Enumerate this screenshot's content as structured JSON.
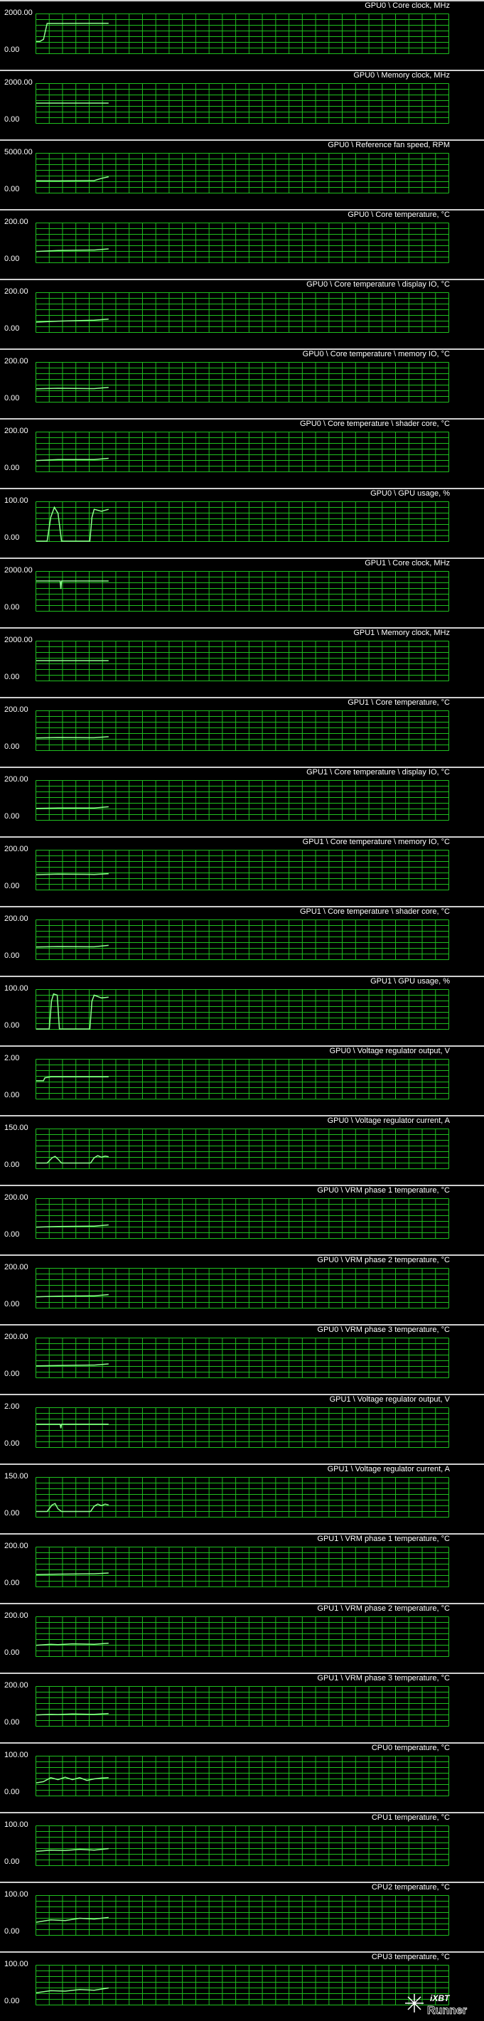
{
  "colors": {
    "background": "#000000",
    "grid": "#1fbf1f",
    "trace": "#8dff8d",
    "separator": "#cfcfcf",
    "label": "#ffffff"
  },
  "logo": {
    "text": "iXBT Runner"
  },
  "panels": [
    {
      "title": "GPU0 \\ Core clock, MHz",
      "ymax": "2000.00",
      "ymin": "0.00",
      "chart_data": {
        "type": "line",
        "ylim": [
          0,
          2000
        ],
        "x": [
          0,
          0.5,
          1,
          1.5,
          2,
          3,
          10
        ],
        "y": [
          600,
          600,
          700,
          1500,
          1500,
          1500,
          1510
        ]
      }
    },
    {
      "title": "GPU0 \\ Memory clock, MHz",
      "ymax": "2000.00",
      "ymin": "0.00",
      "chart_data": {
        "type": "line",
        "ylim": [
          0,
          2000
        ],
        "x": [
          0,
          10
        ],
        "y": [
          1000,
          1000
        ]
      }
    },
    {
      "title": "GPU0 \\ Reference fan speed, RPM",
      "ymax": "5000.00",
      "ymin": "0.00",
      "chart_data": {
        "type": "line",
        "ylim": [
          0,
          5000
        ],
        "x": [
          0,
          3,
          8,
          9,
          10
        ],
        "y": [
          1500,
          1480,
          1520,
          1800,
          2000
        ]
      }
    },
    {
      "title": "GPU0 \\ Core temperature, °C",
      "ymax": "200.00",
      "ymin": "0.00",
      "chart_data": {
        "type": "line",
        "ylim": [
          0,
          200
        ],
        "x": [
          0,
          3,
          8,
          10
        ],
        "y": [
          55,
          60,
          62,
          68
        ]
      }
    },
    {
      "title": "GPU0 \\ Core temperature \\ display IO, °C",
      "ymax": "200.00",
      "ymin": "0.00",
      "chart_data": {
        "type": "line",
        "ylim": [
          0,
          200
        ],
        "x": [
          0,
          3,
          8,
          10
        ],
        "y": [
          50,
          55,
          60,
          65
        ]
      }
    },
    {
      "title": "GPU0 \\ Core temperature \\ memory IO, °C",
      "ymax": "200.00",
      "ymin": "0.00",
      "chart_data": {
        "type": "line",
        "ylim": [
          0,
          200
        ],
        "x": [
          0,
          3,
          8,
          10
        ],
        "y": [
          65,
          68,
          66,
          72
        ]
      }
    },
    {
      "title": "GPU0 \\ Core temperature \\ shader core, °C",
      "ymax": "200.00",
      "ymin": "0.00",
      "chart_data": {
        "type": "line",
        "ylim": [
          0,
          200
        ],
        "x": [
          0,
          3,
          8,
          10
        ],
        "y": [
          55,
          60,
          60,
          66
        ]
      }
    },
    {
      "title": "GPU0 \\ GPU usage, %",
      "ymax": "100.00",
      "ymin": "0.00",
      "chart_data": {
        "type": "line",
        "ylim": [
          0,
          100
        ],
        "x": [
          0,
          1.5,
          2,
          2.5,
          3,
          3.5,
          7.4,
          7.7,
          8,
          9,
          10
        ],
        "y": [
          0,
          0,
          60,
          85,
          70,
          0,
          0,
          60,
          80,
          75,
          80
        ]
      }
    },
    {
      "title": "GPU1 \\ Core clock, MHz",
      "ymax": "2000.00",
      "ymin": "0.00",
      "chart_data": {
        "type": "line",
        "ylim": [
          0,
          2000
        ],
        "x": [
          0,
          3.3,
          3.4,
          3.5,
          10
        ],
        "y": [
          1500,
          1500,
          1100,
          1500,
          1500
        ]
      }
    },
    {
      "title": "GPU1 \\ Memory clock, MHz",
      "ymax": "2000.00",
      "ymin": "0.00",
      "chart_data": {
        "type": "line",
        "ylim": [
          0,
          2000
        ],
        "x": [
          0,
          10
        ],
        "y": [
          1000,
          1000
        ]
      }
    },
    {
      "title": "GPU1 \\ Core temperature, °C",
      "ymax": "200.00",
      "ymin": "0.00",
      "chart_data": {
        "type": "line",
        "ylim": [
          0,
          200
        ],
        "x": [
          0,
          3,
          8,
          10
        ],
        "y": [
          62,
          64,
          63,
          68
        ]
      }
    },
    {
      "title": "GPU1 \\ Core temperature \\ display IO, °C",
      "ymax": "200.00",
      "ymin": "0.00",
      "chart_data": {
        "type": "line",
        "ylim": [
          0,
          200
        ],
        "x": [
          0,
          3,
          8,
          10
        ],
        "y": [
          58,
          60,
          60,
          66
        ]
      }
    },
    {
      "title": "GPU1 \\ Core temperature \\ memory IO, °C",
      "ymax": "200.00",
      "ymin": "0.00",
      "chart_data": {
        "type": "line",
        "ylim": [
          0,
          200
        ],
        "x": [
          0,
          3,
          8,
          10
        ],
        "y": [
          75,
          78,
          76,
          80
        ]
      }
    },
    {
      "title": "GPU1 \\ Core temperature \\ shader core, °C",
      "ymax": "200.00",
      "ymin": "0.00",
      "chart_data": {
        "type": "line",
        "ylim": [
          0,
          200
        ],
        "x": [
          0,
          3,
          8,
          10
        ],
        "y": [
          62,
          64,
          63,
          70
        ]
      }
    },
    {
      "title": "GPU1 \\ GPU usage, %",
      "ymax": "100.00",
      "ymin": "0.00",
      "chart_data": {
        "type": "line",
        "ylim": [
          0,
          100
        ],
        "x": [
          0,
          1.8,
          2.1,
          2.4,
          2.9,
          3.2,
          7.4,
          7.7,
          8,
          9,
          10
        ],
        "y": [
          0,
          0,
          70,
          88,
          85,
          0,
          0,
          70,
          85,
          78,
          80
        ]
      }
    },
    {
      "title": "GPU0 \\ Voltage regulator output, V",
      "ymax": "2.00",
      "ymin": "0.00",
      "chart_data": {
        "type": "line",
        "ylim": [
          0,
          2
        ],
        "x": [
          0,
          1,
          1.2,
          2,
          10
        ],
        "y": [
          0.9,
          0.9,
          1.05,
          1.1,
          1.1
        ]
      }
    },
    {
      "title": "GPU0 \\ Voltage regulator current, A",
      "ymax": "150.00",
      "ymin": "0.00",
      "chart_data": {
        "type": "line",
        "ylim": [
          0,
          150
        ],
        "x": [
          0,
          1.5,
          2.2,
          2.6,
          3,
          3.5,
          4,
          7.5,
          8,
          8.5,
          9,
          9.5,
          10
        ],
        "y": [
          20,
          20,
          40,
          45,
          35,
          20,
          20,
          20,
          40,
          48,
          42,
          46,
          44
        ]
      }
    },
    {
      "title": "GPU0 \\ VRM phase 1 temperature, °C",
      "ymax": "200.00",
      "ymin": "0.00",
      "chart_data": {
        "type": "line",
        "ylim": [
          0,
          200
        ],
        "x": [
          0,
          3,
          8,
          10
        ],
        "y": [
          55,
          58,
          60,
          66
        ]
      }
    },
    {
      "title": "GPU0 \\ VRM phase 2 temperature, °C",
      "ymax": "200.00",
      "ymin": "0.00",
      "chart_data": {
        "type": "line",
        "ylim": [
          0,
          200
        ],
        "x": [
          0,
          3,
          8,
          10
        ],
        "y": [
          55,
          58,
          60,
          66
        ]
      }
    },
    {
      "title": "GPU0 \\ VRM phase 3 temperature, °C",
      "ymax": "200.00",
      "ymin": "0.00",
      "chart_data": {
        "type": "line",
        "ylim": [
          0,
          200
        ],
        "x": [
          0,
          3,
          8,
          10
        ],
        "y": [
          58,
          60,
          62,
          68
        ]
      }
    },
    {
      "title": "GPU1 \\ Voltage regulator output, V",
      "ymax": "2.00",
      "ymin": "0.00",
      "chart_data": {
        "type": "line",
        "ylim": [
          0,
          2
        ],
        "x": [
          0,
          3.3,
          3.4,
          3.5,
          10
        ],
        "y": [
          1.15,
          1.15,
          0.95,
          1.15,
          1.15
        ]
      }
    },
    {
      "title": "GPU1 \\ Voltage regulator current, A",
      "ymax": "150.00",
      "ymin": "0.00",
      "chart_data": {
        "type": "line",
        "ylim": [
          0,
          150
        ],
        "x": [
          0,
          1.5,
          2.2,
          2.6,
          3,
          3.5,
          7.5,
          8,
          8.5,
          9,
          9.5,
          10
        ],
        "y": [
          20,
          20,
          45,
          50,
          30,
          20,
          20,
          40,
          48,
          42,
          48,
          45
        ]
      }
    },
    {
      "title": "GPU1 \\ VRM phase 1 temperature, °C",
      "ymax": "200.00",
      "ymin": "0.00",
      "chart_data": {
        "type": "line",
        "ylim": [
          0,
          200
        ],
        "x": [
          0,
          3,
          8,
          10
        ],
        "y": [
          60,
          62,
          64,
          68
        ]
      }
    },
    {
      "title": "GPU1 \\ VRM phase 2 temperature, °C",
      "ymax": "200.00",
      "ymin": "0.00",
      "chart_data": {
        "type": "line",
        "ylim": [
          0,
          200
        ],
        "x": [
          0,
          2,
          3,
          5,
          8,
          10
        ],
        "y": [
          55,
          60,
          58,
          62,
          60,
          65
        ]
      }
    },
    {
      "title": "GPU1 \\ VRM phase 3 temperature, °C",
      "ymax": "200.00",
      "ymin": "0.00",
      "chart_data": {
        "type": "line",
        "ylim": [
          0,
          200
        ],
        "x": [
          0,
          2,
          3,
          5,
          8,
          10
        ],
        "y": [
          55,
          58,
          57,
          60,
          58,
          62
        ]
      }
    },
    {
      "title": "CPU0 temperature, °C",
      "ymax": "100.00",
      "ymin": "0.00",
      "chart_data": {
        "type": "line",
        "ylim": [
          0,
          100
        ],
        "x": [
          0,
          1,
          2,
          3,
          4,
          5,
          6,
          7,
          8,
          9,
          10
        ],
        "y": [
          32,
          35,
          45,
          40,
          46,
          40,
          45,
          38,
          42,
          44,
          45
        ]
      }
    },
    {
      "title": "CPU1 temperature, °C",
      "ymax": "100.00",
      "ymin": "0.00",
      "chart_data": {
        "type": "line",
        "ylim": [
          0,
          100
        ],
        "x": [
          0,
          2,
          4,
          6,
          8,
          10
        ],
        "y": [
          35,
          38,
          37,
          40,
          38,
          42
        ]
      }
    },
    {
      "title": "CPU2 temperature, °C",
      "ymax": "100.00",
      "ymin": "0.00",
      "chart_data": {
        "type": "line",
        "ylim": [
          0,
          100
        ],
        "x": [
          0,
          2,
          4,
          6,
          8,
          10
        ],
        "y": [
          32,
          38,
          36,
          42,
          40,
          44
        ]
      }
    },
    {
      "title": "CPU3 temperature, °C",
      "ymax": "100.00",
      "ymin": "0.00",
      "chart_data": {
        "type": "line",
        "ylim": [
          0,
          100
        ],
        "x": [
          0,
          2,
          4,
          6,
          8,
          10
        ],
        "y": [
          30,
          35,
          34,
          38,
          36,
          42
        ]
      }
    }
  ]
}
